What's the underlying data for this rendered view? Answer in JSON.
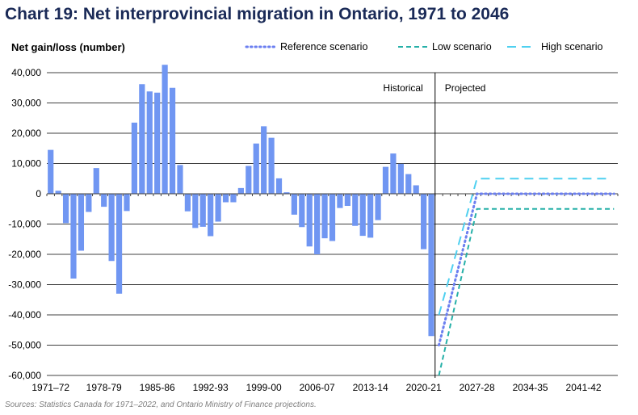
{
  "chart_data": {
    "type": "bar",
    "title": "Chart 19: Net interprovincial migration in Ontario, 1971 to 2046",
    "ylabel": "Net gain/loss (number)",
    "xlabel": "",
    "ylim": [
      -60000,
      45000
    ],
    "yticks": [
      40000,
      30000,
      20000,
      10000,
      0,
      -10000,
      -20000,
      -30000,
      -40000,
      -50000,
      -60000
    ],
    "ytick_labels": [
      "40,000",
      "30,000",
      "20,000",
      "10,000",
      "0",
      "-10,000",
      "-20,000",
      "-30,000",
      "-40,000",
      "-50,000",
      "-60,000"
    ],
    "grid": true,
    "first_year": 1971,
    "last_year": 2045,
    "xtick_labels": [
      "1971–72",
      "1978-79",
      "1985-86",
      "1992-93",
      "1999-00",
      "2006-07",
      "2013-14",
      "2020-21",
      "2027-28",
      "2034-35",
      "2041-42"
    ],
    "bar_color": "#7096f2",
    "historical": {
      "start_year": 1971,
      "values": [
        14500,
        1000,
        -9700,
        -28000,
        -18800,
        -6000,
        8500,
        -4300,
        -22200,
        -33000,
        -5700,
        23500,
        36200,
        33800,
        33400,
        42600,
        35000,
        9500,
        -5800,
        -11300,
        -10900,
        -14000,
        -9200,
        -2800,
        -2800,
        1900,
        9200,
        16600,
        22300,
        18500,
        5100,
        500,
        -6900,
        -11000,
        -17400,
        -20000,
        -14700,
        -15600,
        -4700,
        -4000,
        -10600,
        -13900,
        -14500,
        -8700,
        8900,
        13300,
        9900,
        6500,
        2800,
        -18300,
        -47000
      ]
    },
    "annotations": {
      "historical": "Historical",
      "projected": "Projected"
    },
    "series": [
      {
        "name": "Reference scenario",
        "style": "dotted",
        "color": "#6b7ff0",
        "points": [
          [
            2022,
            -50000
          ],
          [
            2027,
            0
          ],
          [
            2045,
            0
          ]
        ]
      },
      {
        "name": "Low scenario",
        "style": "dashed",
        "color": "#26b0a8",
        "points": [
          [
            2022,
            -60000
          ],
          [
            2027,
            -5000
          ],
          [
            2045,
            -5000
          ]
        ]
      },
      {
        "name": "High scenario",
        "style": "long-dashed",
        "color": "#4fd0f0",
        "points": [
          [
            2022,
            -40000
          ],
          [
            2027,
            5000
          ],
          [
            2044,
            5000
          ]
        ]
      }
    ],
    "legend": "top-right"
  },
  "source": "Sources: Statistics Canada for 1971–2022, and Ontario Ministry of Finance projections."
}
